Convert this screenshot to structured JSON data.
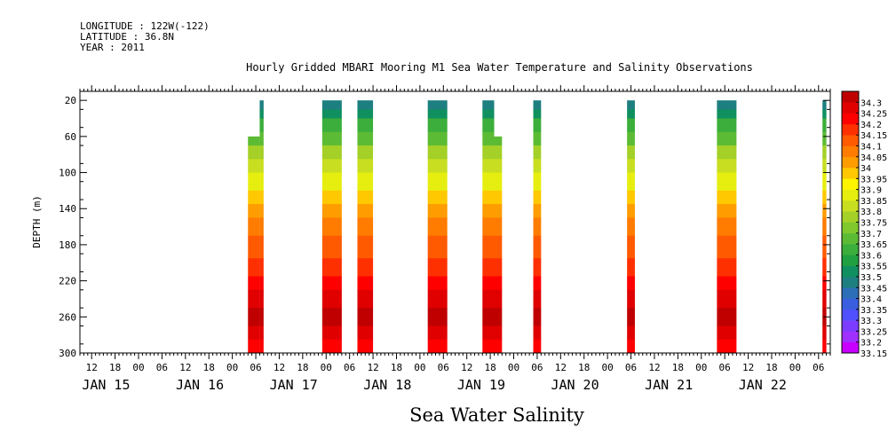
{
  "header": {
    "longitude": "LONGITUDE : 122W(-122)",
    "latitude": "LATITUDE : 36.8N",
    "year": "YEAR : 2011"
  },
  "chart_data": {
    "type": "heatmap",
    "title": "Hourly Gridded MBARI Mooring M1 Sea Water Temperature and Salinity Observations",
    "xlabel": "Sea Water Salinity",
    "ylabel": "DEPTH (m)",
    "xlim": [
      "2011-01-14 09:00",
      "2011-01-22 09:00"
    ],
    "ylim": [
      300,
      10
    ],
    "y_ticks": [
      20,
      60,
      100,
      140,
      180,
      220,
      260,
      300
    ],
    "x_hour_ticks": [
      "12",
      "18",
      "00",
      "06",
      "12",
      "18",
      "00",
      "06",
      "12",
      "18",
      "00",
      "06",
      "12",
      "18",
      "00",
      "06",
      "12",
      "18",
      "00",
      "06",
      "12",
      "18",
      "00",
      "06",
      "12",
      "18",
      "00",
      "06",
      "12",
      "18",
      "00",
      "06"
    ],
    "x_day_labels": [
      "JAN 15",
      "JAN 16",
      "JAN 17",
      "JAN 18",
      "JAN 19",
      "JAN 20",
      "JAN 21",
      "JAN 22"
    ],
    "colorbar": {
      "levels": [
        33.15,
        33.2,
        33.25,
        33.3,
        33.35,
        33.4,
        33.45,
        33.5,
        33.55,
        33.6,
        33.65,
        33.7,
        33.75,
        33.8,
        33.85,
        33.9,
        33.95,
        34,
        34.05,
        34.1,
        34.15,
        34.2,
        34.25,
        34.3
      ],
      "colors": [
        "#c800ff",
        "#a030ff",
        "#7b3cff",
        "#5050ff",
        "#3a5ee0",
        "#2d6eb8",
        "#1e7f80",
        "#109060",
        "#20a040",
        "#3bae3b",
        "#5cbb34",
        "#80c82e",
        "#a4d028",
        "#c8de20",
        "#e6ee10",
        "#fff400",
        "#ffc800",
        "#ff9c00",
        "#ff7c00",
        "#ff5a00",
        "#ff3000",
        "#ff0000",
        "#e00000",
        "#c00000"
      ]
    },
    "profile": [
      {
        "depth": 20,
        "value": 33.38
      },
      {
        "depth": 30,
        "value": 33.47
      },
      {
        "depth": 40,
        "value": 33.55
      },
      {
        "depth": 55,
        "value": 33.62
      },
      {
        "depth": 70,
        "value": 33.7
      },
      {
        "depth": 85,
        "value": 33.76
      },
      {
        "depth": 100,
        "value": 33.82
      },
      {
        "depth": 120,
        "value": 33.9
      },
      {
        "depth": 135,
        "value": 33.97
      },
      {
        "depth": 150,
        "value": 34.03
      },
      {
        "depth": 170,
        "value": 34.07
      },
      {
        "depth": 195,
        "value": 34.12
      },
      {
        "depth": 215,
        "value": 34.17
      },
      {
        "depth": 230,
        "value": 34.22
      },
      {
        "depth": 250,
        "value": 34.28
      },
      {
        "depth": 270,
        "value": 34.28
      },
      {
        "depth": 285,
        "value": 34.22
      },
      {
        "depth": 300,
        "value": 34.2
      }
    ],
    "segments": [
      {
        "start": "2011-01-16 04:00",
        "end": "2011-01-16 07:00",
        "min_depth": 60
      },
      {
        "start": "2011-01-16 07:00",
        "end": "2011-01-16 08:00",
        "min_depth": 20
      },
      {
        "start": "2011-01-16 23:00",
        "end": "2011-01-17 04:00",
        "min_depth": 20
      },
      {
        "start": "2011-01-17 08:00",
        "end": "2011-01-17 12:00",
        "min_depth": 20
      },
      {
        "start": "2011-01-18 02:00",
        "end": "2011-01-18 07:00",
        "min_depth": 20
      },
      {
        "start": "2011-01-18 16:00",
        "end": "2011-01-18 19:00",
        "min_depth": 20
      },
      {
        "start": "2011-01-18 19:00",
        "end": "2011-01-18 21:00",
        "min_depth": 60
      },
      {
        "start": "2011-01-19 05:00",
        "end": "2011-01-19 07:00",
        "min_depth": 20
      },
      {
        "start": "2011-01-20 05:00",
        "end": "2011-01-20 07:00",
        "min_depth": 20
      },
      {
        "start": "2011-01-21 04:00",
        "end": "2011-01-21 09:00",
        "min_depth": 20
      },
      {
        "start": "2011-01-22 07:00",
        "end": "2011-01-22 08:00",
        "min_depth": 20
      }
    ]
  }
}
